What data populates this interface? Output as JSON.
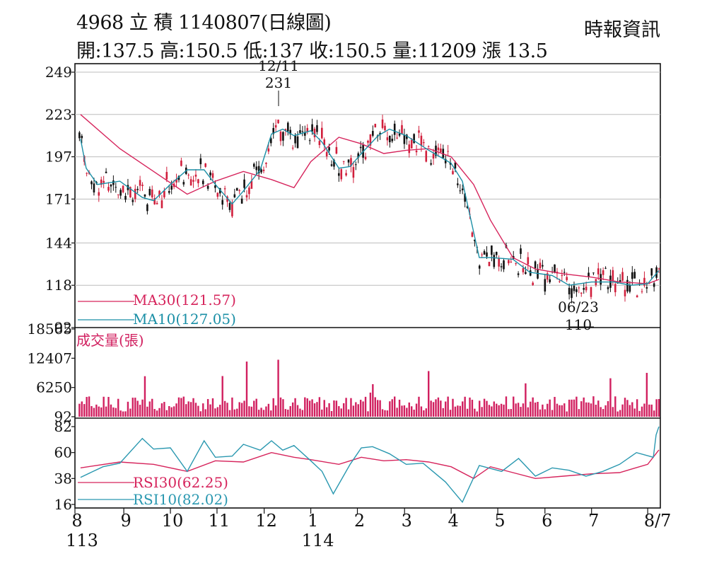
{
  "header": {
    "title": "4968  立    積 1140807(日線圖)",
    "quote": "開:137.5 高:150.5 低:137 收:150.5 量:11209 漲 13.5",
    "source": "時報資訊"
  },
  "colors": {
    "up": "#d11f3c",
    "down": "#111111",
    "ma30": "#d6245c",
    "ma10": "#1a8fa6",
    "volume": "#d11f5f",
    "rsi30": "#d6245c",
    "rsi10": "#2a98b0",
    "grid": "#bdbdbd"
  },
  "chart_data": [
    {
      "type": "candlestick",
      "panel": "price",
      "y_ticks": [
        92,
        118,
        144,
        171,
        197,
        223,
        249
      ],
      "ylim": [
        92,
        249
      ],
      "grid": true,
      "annotations": [
        {
          "date_label": "12/11",
          "value_label": "231",
          "value": 231,
          "x": 2024.95
        },
        {
          "date_label": "06/23",
          "value_label": "110",
          "value": 110,
          "x": 2025.48
        }
      ],
      "series": [
        {
          "name": "MA30(121.57)",
          "legend": "MA30(121.57)",
          "last": 121.57,
          "points": [
            [
              2024.59,
              223
            ],
            [
              2024.66,
              202
            ],
            [
              2024.72,
              188
            ],
            [
              2024.78,
              174
            ],
            [
              2024.83,
              182
            ],
            [
              2024.88,
              188
            ],
            [
              2024.93,
              183
            ],
            [
              2024.97,
              178
            ],
            [
              2025.0,
              194
            ],
            [
              2025.05,
              209
            ],
            [
              2025.09,
              205
            ],
            [
              2025.13,
              199
            ],
            [
              2025.17,
              201
            ],
            [
              2025.21,
              202
            ],
            [
              2025.25,
              197
            ],
            [
              2025.29,
              180
            ],
            [
              2025.32,
              158
            ],
            [
              2025.36,
              135
            ],
            [
              2025.4,
              128
            ],
            [
              2025.45,
              125
            ],
            [
              2025.5,
              123
            ],
            [
              2025.55,
              120
            ],
            [
              2025.6,
              119
            ],
            [
              2025.62,
              121.57
            ]
          ]
        },
        {
          "name": "MA10(127.05)",
          "legend": "MA10(127.05)",
          "last": 127.05,
          "points": [
            [
              2024.59,
              208
            ],
            [
              2024.6,
              190
            ],
            [
              2024.62,
              180
            ],
            [
              2024.66,
              182
            ],
            [
              2024.7,
              172
            ],
            [
              2024.72,
              170
            ],
            [
              2024.75,
              180
            ],
            [
              2024.78,
              189
            ],
            [
              2024.81,
              189
            ],
            [
              2024.83,
              180
            ],
            [
              2024.86,
              168
            ],
            [
              2024.88,
              176
            ],
            [
              2024.91,
              189
            ],
            [
              2024.93,
              211
            ],
            [
              2024.95,
              214
            ],
            [
              2024.97,
              210
            ],
            [
              2025.0,
              213
            ],
            [
              2025.02,
              206
            ],
            [
              2025.05,
              190
            ],
            [
              2025.07,
              191
            ],
            [
              2025.09,
              199
            ],
            [
              2025.12,
              210
            ],
            [
              2025.14,
              214
            ],
            [
              2025.17,
              210
            ],
            [
              2025.21,
              201
            ],
            [
              2025.25,
              193
            ],
            [
              2025.27,
              182
            ],
            [
              2025.3,
              135
            ],
            [
              2025.32,
              135
            ],
            [
              2025.36,
              134
            ],
            [
              2025.39,
              126
            ],
            [
              2025.43,
              124
            ],
            [
              2025.46,
              118
            ],
            [
              2025.5,
              120
            ],
            [
              2025.54,
              120
            ],
            [
              2025.57,
              118
            ],
            [
              2025.6,
              119
            ],
            [
              2025.62,
              127.05
            ]
          ]
        }
      ]
    },
    {
      "type": "bar",
      "panel": "volume",
      "title": "成交量(張)",
      "y_ticks": [
        92,
        6250,
        12407,
        18565
      ],
      "ylim": [
        92,
        18565
      ]
    },
    {
      "type": "line",
      "panel": "rsi",
      "y_ticks": [
        16,
        38,
        60,
        82
      ],
      "ylim": [
        16,
        82
      ],
      "series": [
        {
          "name": "RSI30(62.25)",
          "legend": "RSI30(62.25)",
          "last": 62.25,
          "points": [
            [
              2024.59,
              47
            ],
            [
              2024.66,
              52
            ],
            [
              2024.72,
              50
            ],
            [
              2024.78,
              44
            ],
            [
              2024.83,
              53
            ],
            [
              2024.88,
              52
            ],
            [
              2024.93,
              60
            ],
            [
              2024.97,
              56
            ],
            [
              2025.0,
              54
            ],
            [
              2025.05,
              50
            ],
            [
              2025.09,
              56
            ],
            [
              2025.13,
              53
            ],
            [
              2025.17,
              54
            ],
            [
              2025.21,
              52
            ],
            [
              2025.25,
              48
            ],
            [
              2025.29,
              38
            ],
            [
              2025.32,
              48
            ],
            [
              2025.36,
              43
            ],
            [
              2025.4,
              38
            ],
            [
              2025.45,
              40
            ],
            [
              2025.5,
              42
            ],
            [
              2025.55,
              43
            ],
            [
              2025.6,
              50
            ],
            [
              2025.62,
              62.25
            ]
          ]
        },
        {
          "name": "RSI10(82.02)",
          "legend": "RSI10(82.02)",
          "last": 82.02,
          "points": [
            [
              2024.59,
              39
            ],
            [
              2024.63,
              48
            ],
            [
              2024.66,
              51
            ],
            [
              2024.7,
              72
            ],
            [
              2024.72,
              63
            ],
            [
              2024.75,
              64
            ],
            [
              2024.78,
              44
            ],
            [
              2024.81,
              70
            ],
            [
              2024.83,
              56
            ],
            [
              2024.86,
              57
            ],
            [
              2024.88,
              67
            ],
            [
              2024.91,
              62
            ],
            [
              2024.93,
              70
            ],
            [
              2024.95,
              62
            ],
            [
              2024.97,
              66
            ],
            [
              2025.0,
              53
            ],
            [
              2025.02,
              44
            ],
            [
              2025.04,
              25
            ],
            [
              2025.07,
              50
            ],
            [
              2025.09,
              64
            ],
            [
              2025.11,
              65
            ],
            [
              2025.14,
              59
            ],
            [
              2025.17,
              50
            ],
            [
              2025.2,
              51
            ],
            [
              2025.24,
              35
            ],
            [
              2025.27,
              18
            ],
            [
              2025.3,
              49
            ],
            [
              2025.34,
              44
            ],
            [
              2025.37,
              55
            ],
            [
              2025.4,
              40
            ],
            [
              2025.43,
              47
            ],
            [
              2025.46,
              45
            ],
            [
              2025.49,
              40
            ],
            [
              2025.52,
              44
            ],
            [
              2025.55,
              50
            ],
            [
              2025.58,
              60
            ],
            [
              2025.61,
              56
            ],
            [
              2025.615,
              75
            ],
            [
              2025.62,
              82.02
            ]
          ]
        }
      ]
    }
  ],
  "x_axis": {
    "months": [
      {
        "label": "8",
        "year": "113",
        "x": 2024.58
      },
      {
        "label": "9",
        "x": 2024.667
      },
      {
        "label": "10",
        "x": 2024.75
      },
      {
        "label": "11",
        "x": 2024.833
      },
      {
        "label": "12",
        "x": 2024.917
      },
      {
        "label": "1",
        "year": "114",
        "x": 2025.0
      },
      {
        "label": "2",
        "x": 2025.083
      },
      {
        "label": "3",
        "x": 2025.167
      },
      {
        "label": "4",
        "x": 2025.25
      },
      {
        "label": "5",
        "x": 2025.333
      },
      {
        "label": "6",
        "x": 2025.417
      },
      {
        "label": "7",
        "x": 2025.5
      },
      {
        "label": "8/7",
        "x": 2025.6
      }
    ]
  }
}
